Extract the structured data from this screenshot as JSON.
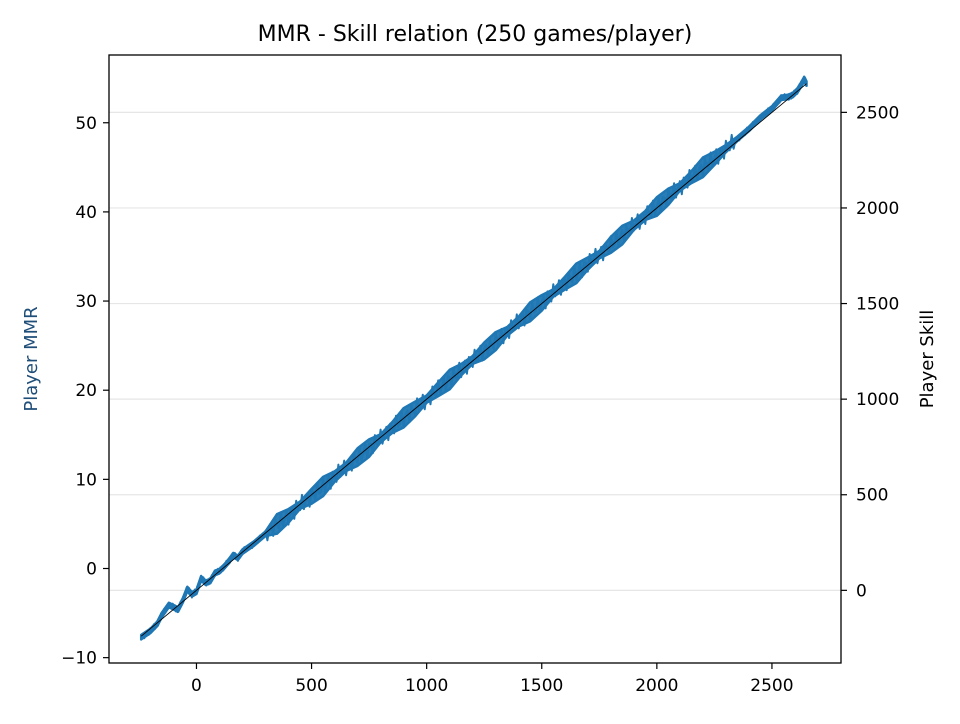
{
  "chart_data": {
    "type": "line",
    "title": "MMR - Skill relation (250 games/player)",
    "xlabel": "",
    "ylabel_left": "Player MMR",
    "ylabel_right": "Player Skill",
    "xlim": [
      -380,
      2800
    ],
    "ylim_left": [
      -10.6,
      57.6
    ],
    "ylim_right": [
      -380,
      2800
    ],
    "x_ticks": [
      0,
      500,
      1000,
      1500,
      2000,
      2500
    ],
    "y_left_ticks": [
      -10,
      0,
      10,
      20,
      30,
      40,
      50
    ],
    "y_right_ticks": [
      0,
      500,
      1000,
      1500,
      2000,
      2500
    ],
    "grid": "horizontal",
    "colors": {
      "mmr_series": "#1f77b4",
      "skill_series": "#000000",
      "left_label": "#1f4e79"
    },
    "series": [
      {
        "axis": "left",
        "x": [
          -240,
          -200,
          -170,
          -150,
          -120,
          -95,
          -80,
          -60,
          -40,
          -20,
          0,
          20,
          40,
          60,
          80,
          100,
          120,
          140,
          160,
          180,
          200,
          250,
          300,
          350,
          400,
          450,
          500,
          550,
          600,
          650,
          700,
          750,
          800,
          850,
          900,
          950,
          1000,
          1050,
          1100,
          1150,
          1200,
          1250,
          1300,
          1350,
          1400,
          1450,
          1500,
          1550,
          1600,
          1650,
          1700,
          1750,
          1800,
          1850,
          1900,
          1950,
          2000,
          2050,
          2100,
          2150,
          2200,
          2250,
          2300,
          2350,
          2400,
          2450,
          2500,
          2540,
          2570,
          2590,
          2610,
          2625,
          2640,
          2650
        ],
        "y": [
          -7.7,
          -7.0,
          -6.2,
          -5.2,
          -4.1,
          -4.4,
          -4.6,
          -3.6,
          -2.3,
          -2.9,
          -2.6,
          -1.1,
          -1.6,
          -1.4,
          -0.5,
          -0.3,
          0.2,
          0.8,
          1.5,
          1.2,
          1.9,
          2.8,
          3.9,
          5.0,
          5.9,
          7.1,
          8.1,
          9.2,
          10.3,
          11.4,
          12.5,
          13.5,
          14.6,
          15.8,
          16.9,
          17.9,
          19.0,
          20.1,
          21.2,
          22.3,
          23.4,
          24.4,
          25.5,
          26.6,
          27.7,
          28.8,
          29.8,
          30.9,
          32.0,
          33.1,
          34.2,
          35.2,
          36.3,
          37.4,
          38.5,
          39.6,
          40.6,
          41.7,
          42.8,
          43.9,
          45.0,
          46.0,
          47.1,
          48.2,
          49.3,
          50.6,
          51.6,
          52.8,
          52.9,
          53.1,
          53.6,
          54.2,
          54.9,
          54.4
        ]
      },
      {
        "axis": "right",
        "x": [
          -240,
          2650
        ],
        "y": [
          -240,
          2650
        ]
      }
    ]
  }
}
